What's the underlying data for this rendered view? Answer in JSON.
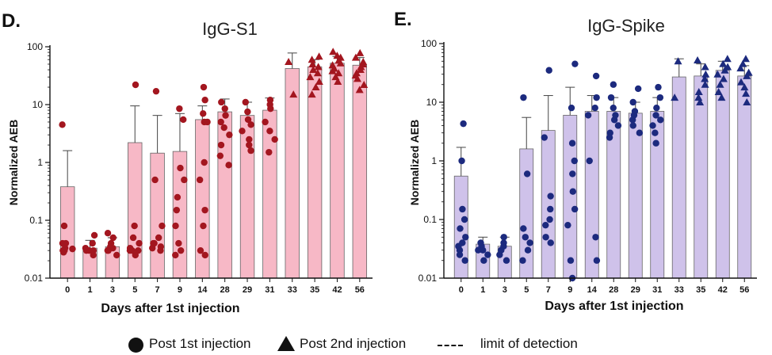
{
  "chart_data": [
    {
      "type": "bar",
      "panel_label": "D.",
      "title": "IgG-S1",
      "xlabel": "Days after 1st injection",
      "ylabel": "Normalized AEB",
      "yscale": "log",
      "ylim": [
        0.01,
        100
      ],
      "yticks": [
        "0.01",
        "0.1",
        "1",
        "10",
        "100"
      ],
      "categories": [
        "0",
        "1",
        "3",
        "5",
        "7",
        "9",
        "14",
        "28",
        "29",
        "31",
        "33",
        "35",
        "42",
        "56"
      ],
      "means": [
        0.38,
        0.033,
        0.035,
        2.2,
        1.45,
        1.55,
        5.5,
        7.5,
        6.5,
        8.0,
        42,
        45,
        52,
        48
      ],
      "error_upper": [
        1.6,
        0.045,
        0.05,
        9.5,
        6.5,
        7.0,
        9.5,
        12.5,
        11.0,
        13.0,
        78,
        60,
        68,
        65
      ],
      "bar_color": "#f7b8c6",
      "point_color": "#a3161f",
      "points_post1": [
        [
          4.5,
          0.08,
          0.04,
          0.033,
          0.03,
          0.03,
          0.032,
          0.028,
          0.04
        ],
        [
          0.055,
          0.04,
          0.033,
          0.03,
          0.03,
          0.03,
          0.025
        ],
        [
          0.06,
          0.05,
          0.04,
          0.035,
          0.033,
          0.03,
          0.03,
          0.025
        ],
        [
          22,
          0.08,
          0.05,
          0.04,
          0.033,
          0.03,
          0.03,
          0.025,
          0.03
        ],
        [
          17,
          0.5,
          0.08,
          0.05,
          0.04,
          0.04,
          0.035,
          0.03,
          0.033
        ],
        [
          8.5,
          5.5,
          0.8,
          0.5,
          0.25,
          0.15,
          0.08,
          0.04,
          0.025,
          0.03
        ],
        [
          20,
          12,
          7,
          5,
          5,
          1,
          0.5,
          0.15,
          0.08,
          0.03,
          0.025
        ],
        [
          11,
          8.5,
          6.5,
          5,
          4,
          3,
          2,
          1.3,
          0.9
        ],
        [
          11,
          7.5,
          5.5,
          4.5,
          3.5,
          2.5,
          2,
          1.6
        ],
        [
          12,
          10,
          8.5,
          5,
          3.5,
          2.5,
          1.5
        ]
      ],
      "points_post2": [
        [],
        [],
        [],
        [],
        [],
        [],
        [],
        [],
        [],
        [],
        [
          55,
          15
        ],
        [
          68,
          60,
          50,
          45,
          40,
          35,
          30,
          25,
          20,
          15
        ],
        [
          82,
          70,
          65,
          58,
          52,
          48,
          42,
          38,
          35,
          30,
          25
        ],
        [
          78,
          65,
          55,
          50,
          45,
          40,
          35,
          32,
          28,
          22,
          18
        ]
      ]
    },
    {
      "type": "bar",
      "panel_label": "E.",
      "title": "IgG-Spike",
      "xlabel": "Days after 1st injection",
      "ylabel": "Normalized AEB",
      "yscale": "log",
      "ylim": [
        0.01,
        100
      ],
      "yticks": [
        "0.01",
        "0.1",
        "1",
        "10",
        "100"
      ],
      "categories": [
        "0",
        "1",
        "3",
        "5",
        "7",
        "9",
        "14",
        "28",
        "29",
        "31",
        "33",
        "35",
        "42",
        "56"
      ],
      "means": [
        0.55,
        0.038,
        0.035,
        1.6,
        3.3,
        6.0,
        7.0,
        7.0,
        6.5,
        7.0,
        27,
        28,
        35,
        28
      ],
      "error_upper": [
        1.7,
        0.05,
        0.05,
        5.5,
        13.0,
        18.0,
        13.0,
        12.0,
        10.0,
        12.0,
        55,
        45,
        50,
        42
      ],
      "bar_color": "#cfc2ea",
      "point_color": "#1c2a7e",
      "points_post1": [
        [
          4.3,
          1.0,
          0.15,
          0.1,
          0.07,
          0.05,
          0.04,
          0.035,
          0.03,
          0.025,
          0.02
        ],
        [
          0.04,
          0.035,
          0.03,
          0.03,
          0.025,
          0.02
        ],
        [
          0.05,
          0.04,
          0.035,
          0.03,
          0.025,
          0.02
        ],
        [
          12,
          0.6,
          0.07,
          0.05,
          0.04,
          0.03,
          0.02
        ],
        [
          35,
          2.5,
          0.25,
          0.15,
          0.1,
          0.08,
          0.05,
          0.04
        ],
        [
          45,
          8,
          2,
          1,
          0.6,
          0.3,
          0.15,
          0.08,
          0.02,
          0.01
        ],
        [
          28,
          12,
          8,
          6,
          1,
          0.05,
          0.02
        ],
        [
          20,
          12,
          8,
          6,
          5,
          4,
          3,
          2.5
        ],
        [
          17,
          10,
          7,
          6,
          5,
          4,
          3
        ],
        [
          18,
          12,
          8,
          6,
          5,
          4,
          3,
          2
        ]
      ],
      "points_post2": [
        [],
        [],
        [],
        [],
        [],
        [],
        [],
        [],
        [],
        [],
        [
          50,
          12
        ],
        [
          52,
          40,
          30,
          25,
          20,
          15,
          12,
          10
        ],
        [
          55,
          45,
          40,
          35,
          30,
          25,
          20,
          15,
          12
        ],
        [
          55,
          45,
          38,
          32,
          28,
          22,
          18,
          14,
          10
        ]
      ]
    }
  ],
  "legend": {
    "post1_label": "Post 1st injection",
    "post2_label": "Post 2nd injection",
    "lod_label": "limit of detection"
  }
}
